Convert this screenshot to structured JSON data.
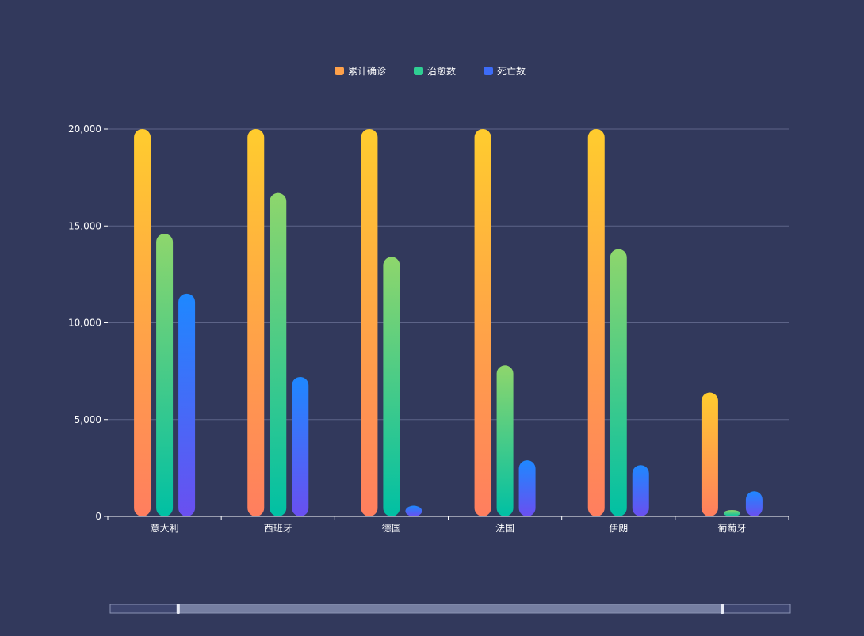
{
  "chart_data": {
    "type": "bar",
    "title": "",
    "xlabel": "",
    "ylabel": "",
    "ylim": [
      0,
      20000
    ],
    "yticks": [
      0,
      5000,
      10000,
      15000,
      20000
    ],
    "ytick_labels": [
      "0",
      "5,000",
      "10,000",
      "15,000",
      "20,000"
    ],
    "categories": [
      "意大利",
      "西班牙",
      "德国",
      "法国",
      "伊朗",
      "葡萄牙"
    ],
    "series": [
      {
        "name": "累计确诊",
        "values": [
          20000,
          20000,
          20000,
          20000,
          20000,
          6400
        ]
      },
      {
        "name": "治愈数",
        "values": [
          14600,
          16700,
          13400,
          7800,
          13800,
          200
        ]
      },
      {
        "name": "死亡数",
        "values": [
          11500,
          7200,
          550,
          2900,
          2650,
          1300
        ]
      }
    ],
    "legend_position": "top-center",
    "grid": true,
    "data_zoom": {
      "start_percent": 10,
      "end_percent": 90
    }
  },
  "colors": {
    "background": "#32395c",
    "gridline": "#5d6488",
    "axis": "#ffffff",
    "text": "#ffffff",
    "series": [
      {
        "top": "#ffcc2e",
        "bottom": "#ff7e5f",
        "legend": "#ffa14a"
      },
      {
        "top": "#8ed66c",
        "bottom": "#00c0a4",
        "legend": "#2fcf93"
      },
      {
        "top": "#1e88ff",
        "bottom": "#6a4ff0",
        "legend": "#3d6cf8"
      }
    ],
    "zoom_track": "#3e4670",
    "zoom_fill": "#8a93b3",
    "zoom_handle": "#e7eaf5"
  }
}
